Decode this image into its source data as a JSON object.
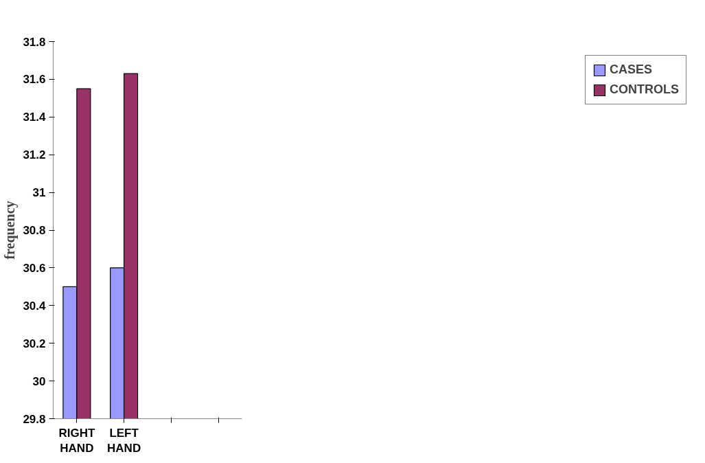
{
  "chart_data": {
    "type": "bar",
    "ylabel": "frequency",
    "categories": [
      "RIGHT HAND",
      "LEFT HAND",
      null,
      null
    ],
    "series": [
      {
        "name": "CASES",
        "color": "#9999ff",
        "values": [
          30.5,
          30.6,
          null,
          null
        ]
      },
      {
        "name": "CONTROLS",
        "color": "#993366",
        "values": [
          31.55,
          31.63,
          null,
          null
        ]
      }
    ],
    "ylim": [
      29.8,
      31.8
    ],
    "yticks": [
      29.8,
      30,
      30.2,
      30.4,
      30.6,
      30.8,
      31,
      31.2,
      31.4,
      31.6,
      31.8
    ],
    "grid": false,
    "legend": "right"
  }
}
